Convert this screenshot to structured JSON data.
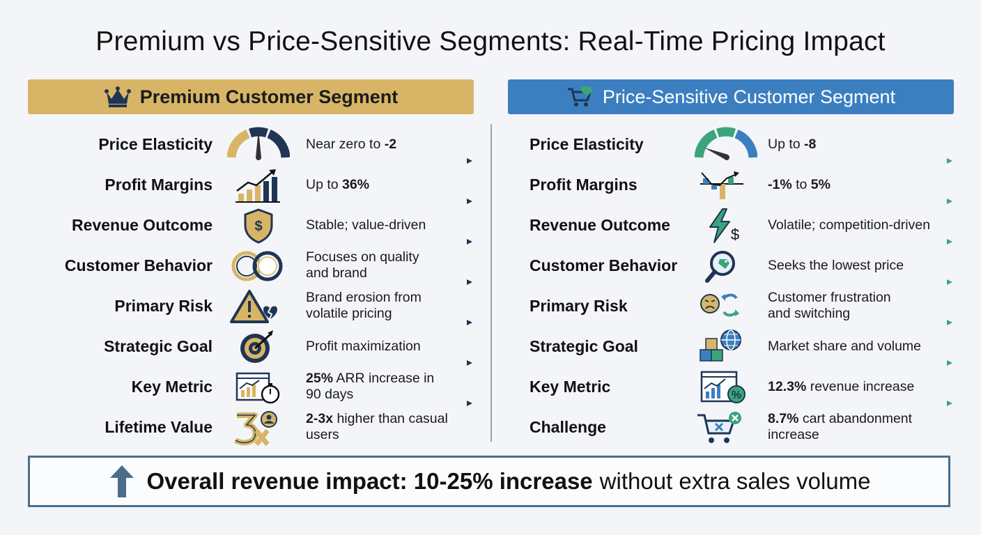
{
  "title": "Premium vs Price-Sensitive Segments: Real-Time Pricing Impact",
  "colors": {
    "premium_accent": "#d8b566",
    "sensitive_accent": "#3b7fc0",
    "navy": "#1f3553",
    "green": "#3aa57a"
  },
  "premium": {
    "header": "Premium Customer Segment",
    "header_icon": "crown-icon",
    "rows": [
      {
        "label": "Price Elasticity",
        "icon": "gauge-icon",
        "v1": "Near zero to ",
        "v1b": "-2",
        "v2": ""
      },
      {
        "label": "Profit Margins",
        "icon": "bar-chart-up-icon",
        "v1": "Up to ",
        "v1b": "36%",
        "v2": ""
      },
      {
        "label": "Revenue Outcome",
        "icon": "dollar-shield-icon",
        "v1": "Stable; value-driven",
        "v1b": "",
        "v2": ""
      },
      {
        "label": "Customer Behavior",
        "icon": "quality-rings-icon",
        "v1": "Focuses on quality",
        "v1b": "",
        "v2": "and brand"
      },
      {
        "label": "Primary Risk",
        "icon": "warning-broken-heart-icon",
        "v1": "Brand erosion from",
        "v1b": "",
        "v2": "volatile pricing"
      },
      {
        "label": "Strategic Goal",
        "icon": "target-icon",
        "v1": "Profit maximization",
        "v1b": "",
        "v2": ""
      },
      {
        "label": "Key Metric",
        "icon": "chart-stopwatch-icon",
        "v1b_first": "25%",
        "v1": " ARR increase in",
        "v2": "90 days"
      },
      {
        "label": "Lifetime Value",
        "icon": "3x-user-icon",
        "v1b_first": "2-3x",
        "v1": " higher than casual",
        "v2": "users"
      }
    ]
  },
  "sensitive": {
    "header": "Price-Sensitive Customer Segment",
    "header_icon": "cart-tag-icon",
    "rows": [
      {
        "label": "Price Elasticity",
        "icon": "gauge-icon",
        "v1": "Up to ",
        "v1b": "-8",
        "v2": ""
      },
      {
        "label": "Profit Margins",
        "icon": "volatile-bars-icon",
        "v1b_first": "-1%",
        "v1": " to ",
        "v1b": "5%",
        "v2": ""
      },
      {
        "label": "Revenue Outcome",
        "icon": "lightning-dollar-icon",
        "v1": "Volatile; competition-driven",
        "v1b": "",
        "v2": ""
      },
      {
        "label": "Customer Behavior",
        "icon": "magnify-tag-icon",
        "v1": "Seeks the lowest price",
        "v1b": "",
        "v2": ""
      },
      {
        "label": "Primary Risk",
        "icon": "frustrated-switch-icon",
        "v1": "Customer frustration",
        "v1b": "",
        "v2": "and switching"
      },
      {
        "label": "Strategic Goal",
        "icon": "boxes-globe-icon",
        "v1": "Market share and volume",
        "v1b": "",
        "v2": ""
      },
      {
        "label": "Key Metric",
        "icon": "chart-percent-icon",
        "v1b_first": "12.3%",
        "v1": " revenue increase",
        "v2": ""
      },
      {
        "label": "Challenge",
        "icon": "cart-x-icon",
        "v1b_first": "8.7%",
        "v1": " cart abandonment",
        "v2": "increase"
      }
    ]
  },
  "banner": {
    "icon": "arrow-up-icon",
    "strong": "Overall revenue impact: 10-25% increase",
    "rest": "without extra sales volume"
  }
}
